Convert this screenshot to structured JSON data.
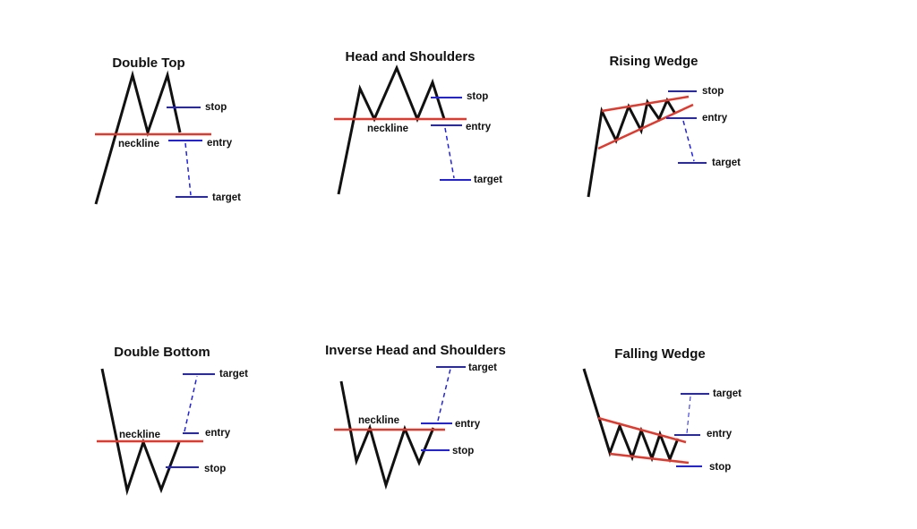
{
  "patterns": [
    {
      "title": "Double Top",
      "neckline": "neckline",
      "stop": "stop",
      "entry": "entry",
      "target": "target"
    },
    {
      "title": "Head and Shoulders",
      "neckline": "neckline",
      "stop": "stop",
      "entry": "entry",
      "target": "target"
    },
    {
      "title": "Rising Wedge",
      "stop": "stop",
      "entry": "entry",
      "target": "target"
    },
    {
      "title": "Double Bottom",
      "neckline": "neckline",
      "target": "target",
      "entry": "entry",
      "stop": "stop"
    },
    {
      "title": "Inverse Head and Shoulders",
      "neckline": "neckline",
      "target": "target",
      "entry": "entry",
      "stop": "stop"
    },
    {
      "title": "Falling Wedge",
      "target": "target",
      "entry": "entry",
      "stop": "stop"
    }
  ]
}
